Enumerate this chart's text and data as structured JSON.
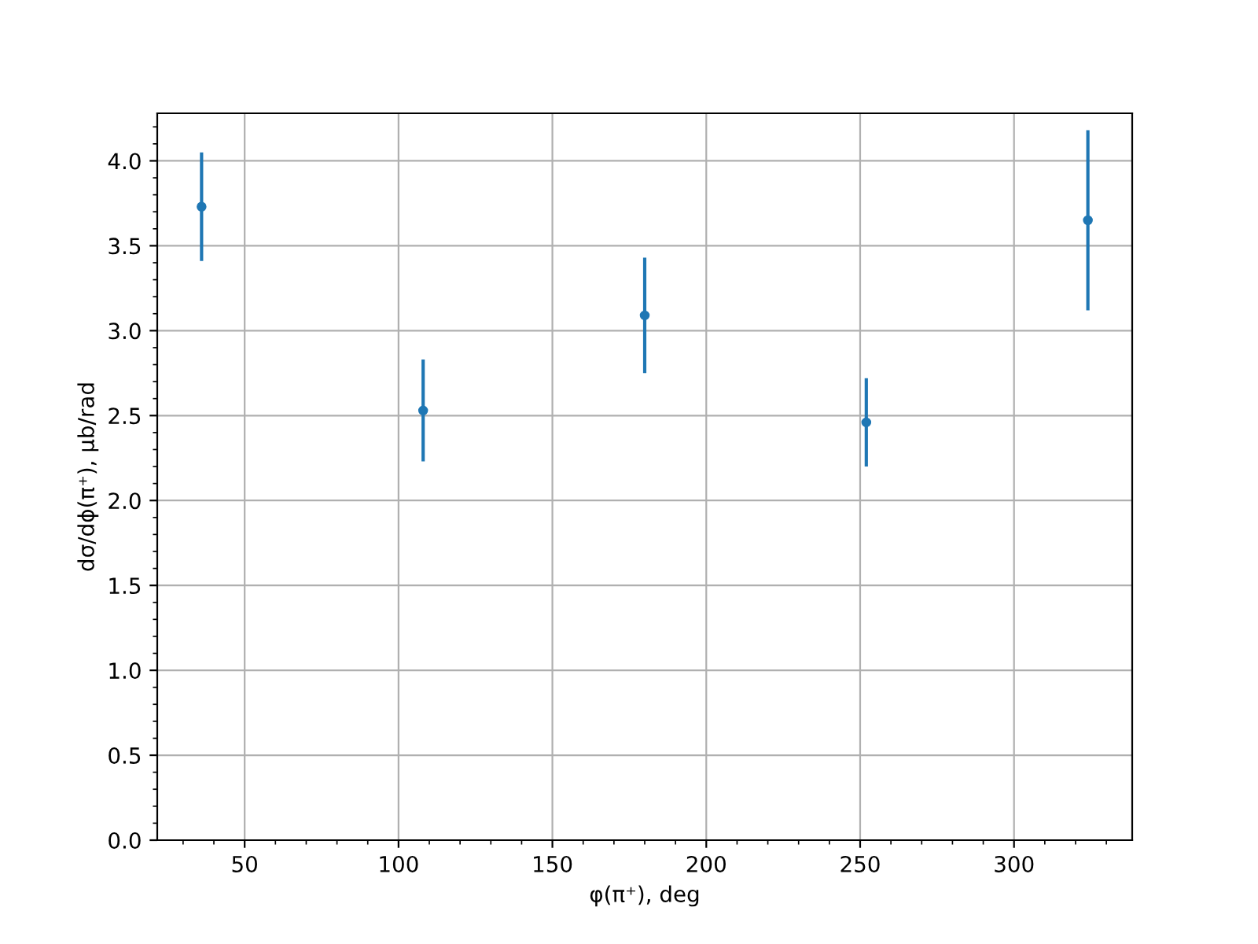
{
  "chart_data": {
    "type": "scatter",
    "xlabel": "φ(π⁺), deg",
    "ylabel": "dσ/dϕ(π⁺), μb/rad",
    "x": [
      36,
      108,
      180,
      252,
      324
    ],
    "series": [
      {
        "color": "#1f77b4",
        "values": [
          3.73,
          2.53,
          3.09,
          2.46,
          3.65
        ],
        "errors": [
          0.32,
          0.3,
          0.34,
          0.26,
          0.53
        ]
      }
    ],
    "xlim": [
      21.6,
      338.4
    ],
    "xticks": [
      50,
      100,
      150,
      200,
      250,
      300
    ],
    "ylim": [
      0,
      4.28
    ],
    "yticks": [
      {
        "value": 0,
        "label": "0.0"
      },
      {
        "value": 0.5,
        "label": "0.5"
      },
      {
        "value": 1,
        "label": "1.0"
      },
      {
        "value": 1.5,
        "label": "1.5"
      },
      {
        "value": 2,
        "label": "2.0"
      },
      {
        "value": 2.5,
        "label": "2.5"
      },
      {
        "value": 3,
        "label": "3.0"
      },
      {
        "value": 3.5,
        "label": "3.5"
      },
      {
        "value": 4,
        "label": "4.0"
      }
    ],
    "grid": true,
    "marker": "circle"
  }
}
